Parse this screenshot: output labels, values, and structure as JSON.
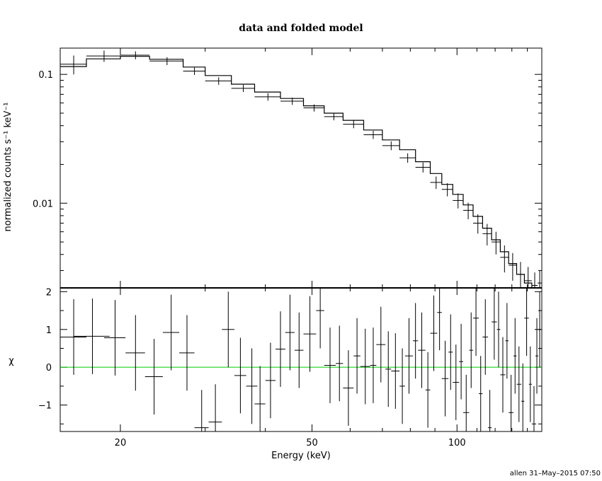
{
  "chart_data": [
    {
      "type": "line",
      "panel": "spectrum",
      "title": "data and folded model",
      "ylabel": "normalized counts s⁻¹ keV⁻¹",
      "x_scale": "log",
      "y_scale": "log",
      "xlim": [
        15,
        150
      ],
      "ylim": [
        0.0022,
        0.16
      ],
      "y_ticks": [
        0.01,
        0.1
      ],
      "y_tick_labels": [
        "0.01",
        "0.1"
      ],
      "series": [
        {
          "role": "model",
          "style": "step",
          "edges": [
            15,
            17,
            20,
            23,
            27,
            30,
            34,
            38,
            43,
            48,
            53,
            58,
            64,
            70,
            76,
            82,
            88,
            93,
            98,
            103,
            108,
            113,
            118,
            123,
            128,
            133,
            138,
            143,
            147,
            150
          ],
          "values": [
            0.115,
            0.132,
            0.138,
            0.131,
            0.114,
            0.098,
            0.084,
            0.073,
            0.065,
            0.057,
            0.05,
            0.044,
            0.037,
            0.031,
            0.026,
            0.021,
            0.017,
            0.014,
            0.0117,
            0.0097,
            0.0079,
            0.0064,
            0.0052,
            0.0042,
            0.0034,
            0.0028,
            0.0024,
            0.0021,
            0.0019
          ]
        },
        {
          "role": "data",
          "style": "crosses",
          "points": [
            {
              "x": 16.0,
              "y": 0.12,
              "xerr": 1.0,
              "yerr": 0.02
            },
            {
              "x": 18.5,
              "y": 0.139,
              "xerr": 1.5,
              "yerr": 0.014
            },
            {
              "x": 21.5,
              "y": 0.141,
              "xerr": 1.5,
              "yerr": 0.01
            },
            {
              "x": 25.0,
              "y": 0.127,
              "xerr": 2.0,
              "yerr": 0.009
            },
            {
              "x": 28.5,
              "y": 0.106,
              "xerr": 1.5,
              "yerr": 0.007
            },
            {
              "x": 32.0,
              "y": 0.089,
              "xerr": 2.0,
              "yerr": 0.006
            },
            {
              "x": 36.0,
              "y": 0.078,
              "xerr": 2.0,
              "yerr": 0.005
            },
            {
              "x": 40.5,
              "y": 0.067,
              "xerr": 2.5,
              "yerr": 0.0045
            },
            {
              "x": 45.5,
              "y": 0.062,
              "xerr": 2.5,
              "yerr": 0.004
            },
            {
              "x": 50.5,
              "y": 0.055,
              "xerr": 2.5,
              "yerr": 0.0035
            },
            {
              "x": 55.5,
              "y": 0.047,
              "xerr": 2.5,
              "yerr": 0.003
            },
            {
              "x": 61.0,
              "y": 0.041,
              "xerr": 3.0,
              "yerr": 0.0028
            },
            {
              "x": 67.0,
              "y": 0.034,
              "xerr": 3.0,
              "yerr": 0.0025
            },
            {
              "x": 73.0,
              "y": 0.028,
              "xerr": 3.0,
              "yerr": 0.0022
            },
            {
              "x": 79.0,
              "y": 0.0225,
              "xerr": 3.0,
              "yerr": 0.0019
            },
            {
              "x": 85.0,
              "y": 0.019,
              "xerr": 3.0,
              "yerr": 0.0017
            },
            {
              "x": 90.5,
              "y": 0.0145,
              "xerr": 2.5,
              "yerr": 0.0016
            },
            {
              "x": 95.5,
              "y": 0.0128,
              "xerr": 2.5,
              "yerr": 0.0015
            },
            {
              "x": 100.5,
              "y": 0.0105,
              "xerr": 2.5,
              "yerr": 0.0014
            },
            {
              "x": 105.5,
              "y": 0.0088,
              "xerr": 2.5,
              "yerr": 0.0013
            },
            {
              "x": 110.5,
              "y": 0.007,
              "xerr": 2.5,
              "yerr": 0.0012
            },
            {
              "x": 115.5,
              "y": 0.0058,
              "xerr": 2.5,
              "yerr": 0.0011
            },
            {
              "x": 120.5,
              "y": 0.005,
              "xerr": 2.5,
              "yerr": 0.001
            },
            {
              "x": 125.5,
              "y": 0.0038,
              "xerr": 2.5,
              "yerr": 0.0009
            },
            {
              "x": 130.5,
              "y": 0.0033,
              "xerr": 2.5,
              "yerr": 0.0008
            },
            {
              "x": 135.5,
              "y": 0.0028,
              "xerr": 2.5,
              "yerr": 0.0007
            },
            {
              "x": 140.5,
              "y": 0.0025,
              "xerr": 2.5,
              "yerr": 0.0007
            },
            {
              "x": 145.0,
              "y": 0.0023,
              "xerr": 2.0,
              "yerr": 0.0006
            },
            {
              "x": 148.5,
              "y": 0.0024,
              "xerr": 1.5,
              "yerr": 0.0006
            }
          ]
        }
      ]
    },
    {
      "type": "scatter",
      "panel": "residuals",
      "xlabel": "Energy (keV)",
      "ylabel": "χ",
      "x_scale": "log",
      "xlim": [
        15,
        150
      ],
      "ylim": [
        -1.7,
        2.1
      ],
      "x_ticks": [
        20,
        50,
        100
      ],
      "x_tick_labels": [
        "20",
        "50",
        "100"
      ],
      "y_ticks": [
        -1,
        0,
        1,
        2
      ],
      "y_tick_labels": [
        "−1",
        "0",
        "1",
        "2"
      ],
      "zero_line_color": "#00cc00",
      "points": [
        {
          "x": 16.0,
          "y": 0.8,
          "xerr": 1.0,
          "yerr": 1.0
        },
        {
          "x": 17.5,
          "y": 0.82,
          "xerr": 1.5,
          "yerr": 1.0
        },
        {
          "x": 19.5,
          "y": 0.78,
          "xerr": 1.0,
          "yerr": 1.0
        },
        {
          "x": 21.5,
          "y": 0.38,
          "xerr": 1.0,
          "yerr": 1.0
        },
        {
          "x": 23.5,
          "y": -0.25,
          "xerr": 1.0,
          "yerr": 1.0
        },
        {
          "x": 25.5,
          "y": 0.92,
          "xerr": 1.0,
          "yerr": 1.0
        },
        {
          "x": 27.5,
          "y": 0.38,
          "xerr": 1.0,
          "yerr": 1.0
        },
        {
          "x": 29.5,
          "y": -1.6,
          "xerr": 1.0,
          "yerr": 1.0
        },
        {
          "x": 31.5,
          "y": -1.45,
          "xerr": 1.0,
          "yerr": 1.0
        },
        {
          "x": 33.5,
          "y": 1.0,
          "xerr": 1.0,
          "yerr": 1.0
        },
        {
          "x": 35.5,
          "y": -0.22,
          "xerr": 1.0,
          "yerr": 1.0
        },
        {
          "x": 37.5,
          "y": -0.5,
          "xerr": 1.0,
          "yerr": 1.0
        },
        {
          "x": 39.0,
          "y": -0.97,
          "xerr": 1.0,
          "yerr": 1.0
        },
        {
          "x": 41.0,
          "y": -0.35,
          "xerr": 1.0,
          "yerr": 1.0
        },
        {
          "x": 43.0,
          "y": 0.48,
          "xerr": 1.0,
          "yerr": 1.0
        },
        {
          "x": 45.0,
          "y": 0.92,
          "xerr": 1.0,
          "yerr": 1.0
        },
        {
          "x": 47.0,
          "y": 0.45,
          "xerr": 1.0,
          "yerr": 1.0
        },
        {
          "x": 49.5,
          "y": 0.88,
          "xerr": 1.5,
          "yerr": 1.0
        },
        {
          "x": 52.0,
          "y": 1.5,
          "xerr": 1.0,
          "yerr": 1.0
        },
        {
          "x": 54.5,
          "y": 0.05,
          "xerr": 1.5,
          "yerr": 1.0
        },
        {
          "x": 57.0,
          "y": 0.1,
          "xerr": 1.0,
          "yerr": 1.0
        },
        {
          "x": 59.5,
          "y": -0.55,
          "xerr": 1.5,
          "yerr": 1.0
        },
        {
          "x": 62.0,
          "y": 0.3,
          "xerr": 1.0,
          "yerr": 1.0
        },
        {
          "x": 64.5,
          "y": 0.02,
          "xerr": 1.5,
          "yerr": 1.0
        },
        {
          "x": 67.0,
          "y": 0.05,
          "xerr": 1.0,
          "yerr": 1.0
        },
        {
          "x": 69.5,
          "y": 0.6,
          "xerr": 1.5,
          "yerr": 1.0
        },
        {
          "x": 72.0,
          "y": -0.05,
          "xerr": 1.0,
          "yerr": 1.0
        },
        {
          "x": 74.5,
          "y": -0.1,
          "xerr": 1.5,
          "yerr": 1.0
        },
        {
          "x": 77.0,
          "y": -0.5,
          "xerr": 1.0,
          "yerr": 1.0
        },
        {
          "x": 79.5,
          "y": 0.3,
          "xerr": 1.5,
          "yerr": 1.0
        },
        {
          "x": 82.0,
          "y": 0.7,
          "xerr": 1.0,
          "yerr": 1.0
        },
        {
          "x": 84.5,
          "y": 0.45,
          "xerr": 1.5,
          "yerr": 1.0
        },
        {
          "x": 87.0,
          "y": -0.6,
          "xerr": 1.0,
          "yerr": 1.0
        },
        {
          "x": 89.5,
          "y": 0.9,
          "xerr": 1.5,
          "yerr": 1.0
        },
        {
          "x": 92.0,
          "y": 1.45,
          "xerr": 1.0,
          "yerr": 1.0
        },
        {
          "x": 94.5,
          "y": -0.3,
          "xerr": 1.5,
          "yerr": 1.0
        },
        {
          "x": 97.0,
          "y": 0.4,
          "xerr": 1.0,
          "yerr": 1.0
        },
        {
          "x": 99.5,
          "y": -0.4,
          "xerr": 1.5,
          "yerr": 1.0
        },
        {
          "x": 102.0,
          "y": 0.15,
          "xerr": 1.0,
          "yerr": 1.0
        },
        {
          "x": 104.5,
          "y": -1.2,
          "xerr": 1.5,
          "yerr": 1.0
        },
        {
          "x": 107.0,
          "y": 0.45,
          "xerr": 1.0,
          "yerr": 1.0
        },
        {
          "x": 109.5,
          "y": 1.3,
          "xerr": 1.5,
          "yerr": 1.0
        },
        {
          "x": 112.0,
          "y": -0.7,
          "xerr": 1.0,
          "yerr": 1.0
        },
        {
          "x": 114.5,
          "y": 0.8,
          "xerr": 1.5,
          "yerr": 1.0
        },
        {
          "x": 117.0,
          "y": -1.6,
          "xerr": 1.0,
          "yerr": 1.0
        },
        {
          "x": 119.5,
          "y": 1.2,
          "xerr": 1.5,
          "yerr": 1.0
        },
        {
          "x": 122.0,
          "y": 1.0,
          "xerr": 1.0,
          "yerr": 1.0
        },
        {
          "x": 124.5,
          "y": -0.2,
          "xerr": 1.5,
          "yerr": 1.0
        },
        {
          "x": 127.0,
          "y": 0.7,
          "xerr": 1.0,
          "yerr": 1.0
        },
        {
          "x": 129.5,
          "y": -1.2,
          "xerr": 1.5,
          "yerr": 1.0
        },
        {
          "x": 132.0,
          "y": 0.3,
          "xerr": 1.0,
          "yerr": 1.0
        },
        {
          "x": 134.5,
          "y": -0.45,
          "xerr": 1.5,
          "yerr": 1.0
        },
        {
          "x": 137.0,
          "y": -0.9,
          "xerr": 1.0,
          "yerr": 1.0
        },
        {
          "x": 139.5,
          "y": 1.3,
          "xerr": 1.5,
          "yerr": 1.0
        },
        {
          "x": 142.0,
          "y": -0.45,
          "xerr": 1.0,
          "yerr": 1.0
        },
        {
          "x": 144.5,
          "y": -1.5,
          "xerr": 1.5,
          "yerr": 1.0
        },
        {
          "x": 146.5,
          "y": 0.3,
          "xerr": 1.0,
          "yerr": 1.0
        },
        {
          "x": 148.5,
          "y": 1.0,
          "xerr": 1.0,
          "yerr": 1.0
        }
      ]
    }
  ],
  "footer": "allen 31–May–2015 07:50"
}
